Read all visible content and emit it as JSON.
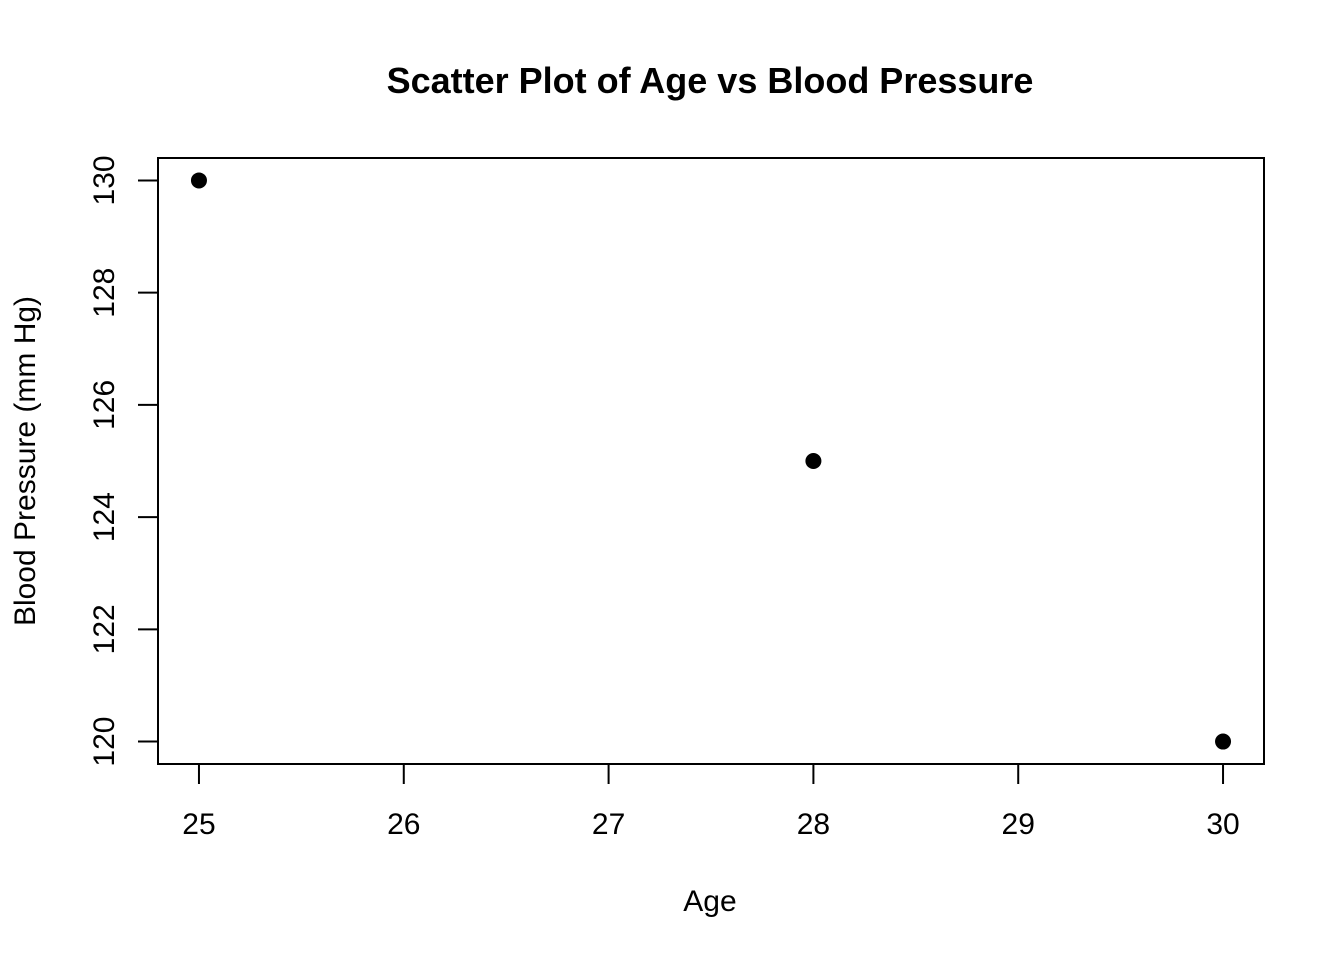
{
  "chart_data": {
    "type": "scatter",
    "title": "Scatter Plot of Age vs Blood Pressure",
    "xlabel": "Age",
    "ylabel": "Blood Pressure (mm Hg)",
    "x": [
      25,
      28,
      30
    ],
    "y": [
      130,
      125,
      120
    ],
    "xlim": [
      24.8,
      30.2
    ],
    "ylim": [
      119.6,
      130.4
    ],
    "xticks": [
      25,
      26,
      27,
      28,
      29,
      30
    ],
    "yticks": [
      120,
      122,
      124,
      126,
      128,
      130
    ],
    "xtick_labels": [
      "25",
      "26",
      "27",
      "28",
      "29",
      "30"
    ],
    "ytick_labels": [
      "120",
      "122",
      "124",
      "126",
      "128",
      "130"
    ],
    "grid": false,
    "legend": "none",
    "marker_color": "#000000"
  }
}
